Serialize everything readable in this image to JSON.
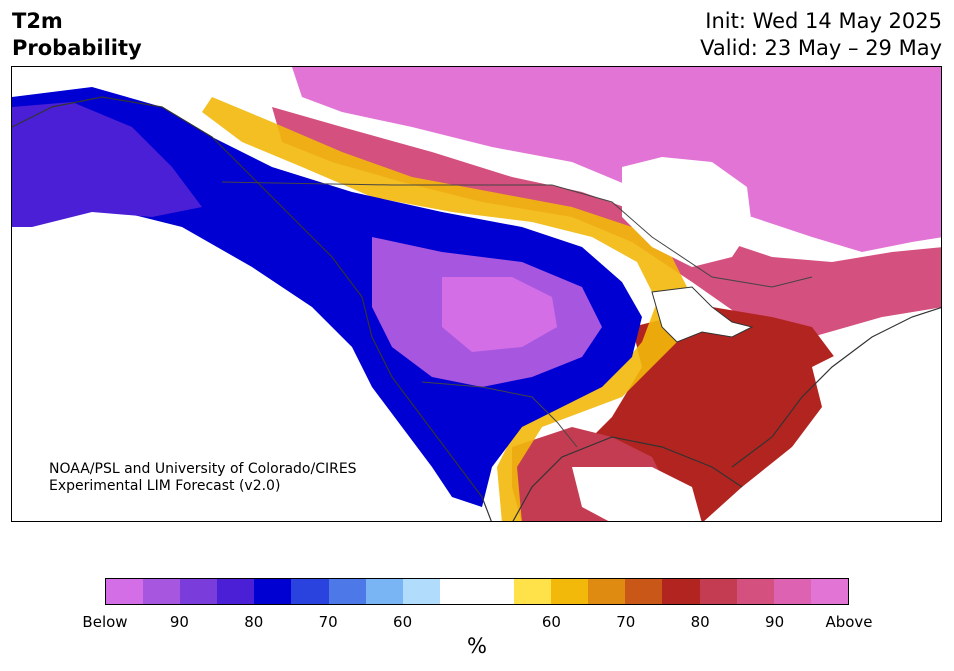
{
  "title": {
    "left_line1": "T2m",
    "left_line2": "Probability",
    "init": "Init: Wed 14 May 2025",
    "valid": "Valid: 23 May – 29 May"
  },
  "credit": {
    "line1": "NOAA/PSL and University of Colorado/CIRES",
    "line2": "Experimental LIM Forecast (v2.0)"
  },
  "colorbar": {
    "unit": "%",
    "colors": [
      "#d36ee6",
      "#a756e0",
      "#7a3ddc",
      "#4a1fd6",
      "#0000d2",
      "#2a43de",
      "#4d78e8",
      "#79b5f4",
      "#b1dcfc",
      "#ffffff",
      "#ffffff",
      "#ffe24a",
      "#f2b80a",
      "#df8b11",
      "#c95718",
      "#b2241f",
      "#c43c52",
      "#d4507e",
      "#dd62b2",
      "#e274d5"
    ],
    "labels": [
      "Below",
      "90",
      "80",
      "70",
      "60",
      "60",
      "70",
      "80",
      "90",
      "Above"
    ]
  },
  "map": {
    "legend_colors": {
      "below_strong": "#d36ee6",
      "below": "#0000d2",
      "neutral": "#ffffff",
      "above": "#b2241f",
      "above_strong": "#e274d5"
    }
  }
}
